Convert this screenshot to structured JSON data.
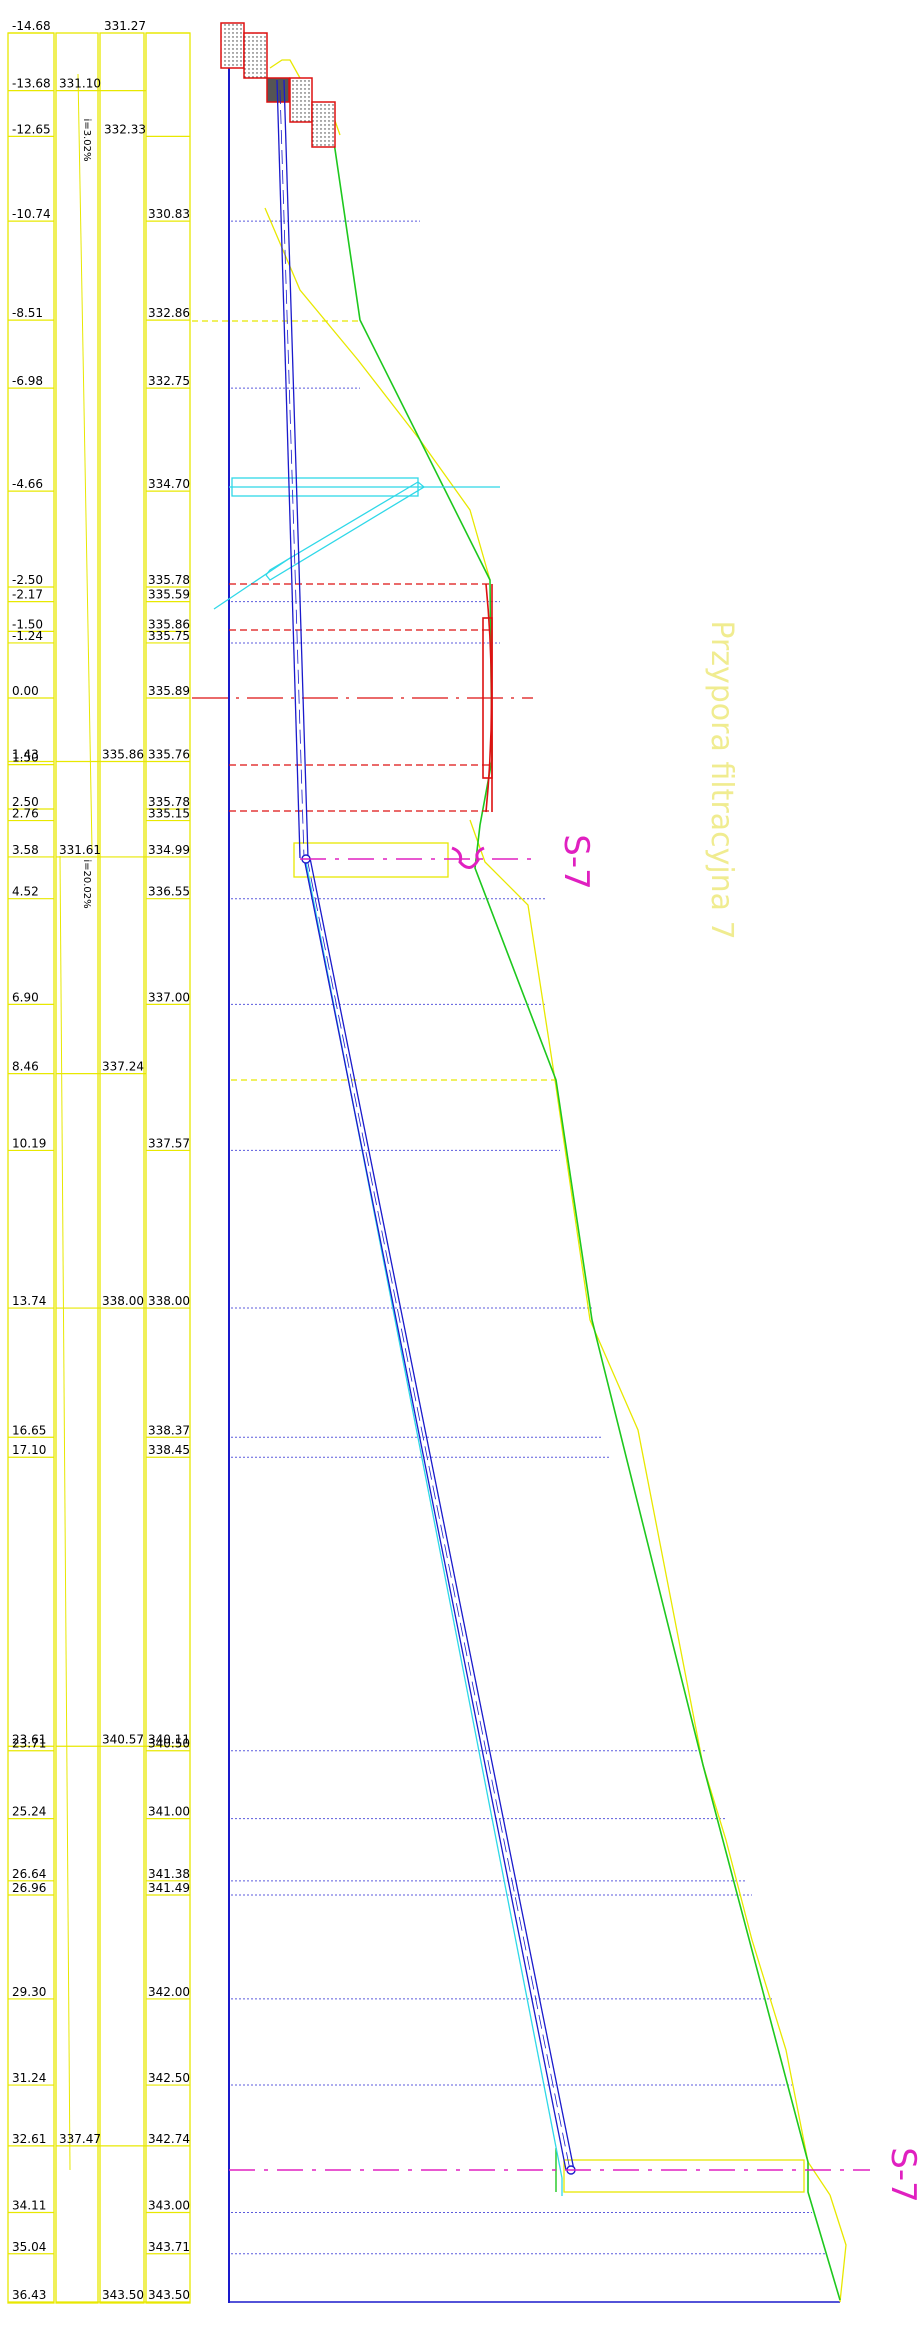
{
  "drawing": {
    "title": "Przypora filtracyjna 7",
    "section_label": "S-7",
    "slope_label_upper": "i=3.02%",
    "slope_label_lower": "i=20.02%"
  },
  "colors": {
    "frame": "#e8e800",
    "text": "#000000",
    "profile_line": "#1a1acc",
    "grid": "#5b5bdd",
    "cyan": "#2fd8e8",
    "green": "#1ec81e",
    "red": "#dd1111",
    "magenta": "#e020c0",
    "title": "#f0ec90"
  },
  "stations": [
    {
      "km": "-14.68",
      "ground": "",
      "design": "331.27"
    },
    {
      "km": "-13.68",
      "ground": "331.10",
      "design": ""
    },
    {
      "km": "-12.65",
      "ground": "",
      "design": "332.33"
    },
    {
      "km": "-10.74",
      "ground": "",
      "design": "330.83"
    },
    {
      "km": "-8.51",
      "ground": "",
      "design": "332.86"
    },
    {
      "km": "-6.98",
      "ground": "",
      "design": "332.75"
    },
    {
      "km": "-4.66",
      "ground": "",
      "design": "334.70"
    },
    {
      "km": "-2.50",
      "ground": "",
      "design": "335.78"
    },
    {
      "km": "-2.17",
      "ground": "",
      "design": "335.59"
    },
    {
      "km": "-1.50",
      "ground": "",
      "design": "335.86"
    },
    {
      "km": "-1.24",
      "ground": "",
      "design": "335.75"
    },
    {
      "km": "0.00",
      "ground": "",
      "design": "335.89"
    },
    {
      "km": "1.43",
      "ground": "335.86",
      "design": "335.76"
    },
    {
      "km": "1.50",
      "ground": "",
      "design": ""
    },
    {
      "km": "2.50",
      "ground": "",
      "design": "335.78"
    },
    {
      "km": "2.76",
      "ground": "",
      "design": "335.15"
    },
    {
      "km": "3.58",
      "ground": "331.61",
      "design": "334.99"
    },
    {
      "km": "4.52",
      "ground": "",
      "design": "336.55"
    },
    {
      "km": "6.90",
      "ground": "",
      "design": "337.00"
    },
    {
      "km": "8.46",
      "ground": "337.24",
      "design": ""
    },
    {
      "km": "10.19",
      "ground": "",
      "design": "337.57"
    },
    {
      "km": "13.74",
      "ground": "338.00",
      "design": "338.00"
    },
    {
      "km": "16.65",
      "ground": "",
      "design": "338.37"
    },
    {
      "km": "17.10",
      "ground": "",
      "design": "338.45"
    },
    {
      "km": "23.61",
      "ground": "340.57",
      "design": "340.11"
    },
    {
      "km": "23.71",
      "ground": "",
      "design": "340.50"
    },
    {
      "km": "25.24",
      "ground": "",
      "design": "341.00"
    },
    {
      "km": "26.64",
      "ground": "",
      "design": "341.38"
    },
    {
      "km": "26.96",
      "ground": "",
      "design": "341.49"
    },
    {
      "km": "29.30",
      "ground": "",
      "design": "342.00"
    },
    {
      "km": "31.24",
      "ground": "",
      "design": "342.50"
    },
    {
      "km": "32.61",
      "ground": "337.47",
      "design": "342.74"
    },
    {
      "km": "34.11",
      "ground": "",
      "design": "343.00"
    },
    {
      "km": "35.04",
      "ground": "",
      "design": "343.71"
    },
    {
      "km": "36.43",
      "ground": "343.50",
      "design": "343.50"
    }
  ]
}
